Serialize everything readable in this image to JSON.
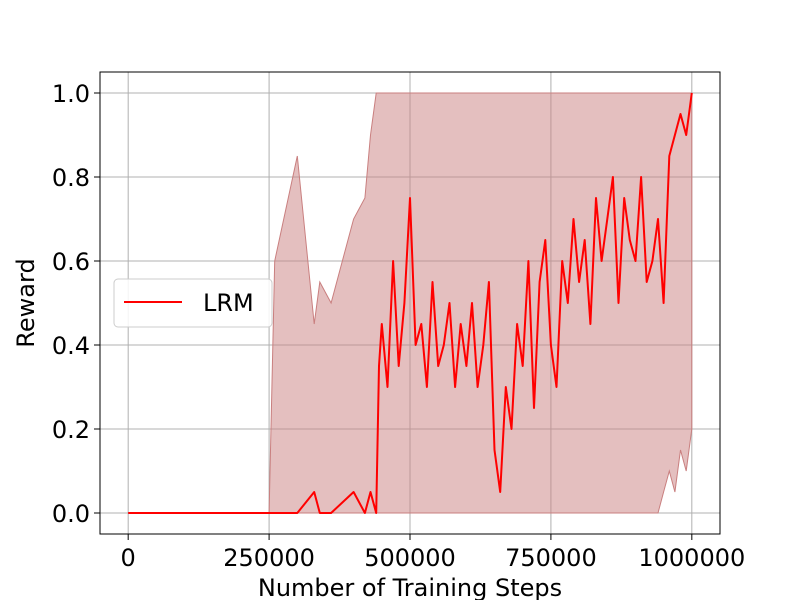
{
  "chart_data": {
    "type": "line",
    "xlabel": "Number of Training Steps",
    "ylabel": "Reward",
    "xlim": [
      -50000,
      1050000
    ],
    "ylim": [
      -0.05,
      1.05
    ],
    "x_ticks": [
      0,
      250000,
      500000,
      750000,
      1000000
    ],
    "x_tick_labels": [
      "0",
      "250000",
      "500000",
      "750000",
      "1000000"
    ],
    "y_ticks": [
      0.0,
      0.2,
      0.4,
      0.6,
      0.8,
      1.0
    ],
    "y_tick_labels": [
      "0.0",
      "0.2",
      "0.4",
      "0.6",
      "0.8",
      "1.0"
    ],
    "grid": true,
    "legend_position": "center-left",
    "series": [
      {
        "name": "LRM",
        "color": "#ff0000",
        "band_color": "#c97f7f",
        "x": [
          0,
          250000,
          260000,
          300000,
          330000,
          340000,
          360000,
          400000,
          420000,
          430000,
          440000,
          445000,
          450000,
          460000,
          470000,
          480000,
          490000,
          500000,
          510000,
          520000,
          530000,
          540000,
          550000,
          560000,
          570000,
          580000,
          590000,
          600000,
          610000,
          620000,
          630000,
          640000,
          650000,
          660000,
          670000,
          680000,
          690000,
          700000,
          710000,
          720000,
          730000,
          740000,
          750000,
          760000,
          770000,
          780000,
          790000,
          800000,
          810000,
          820000,
          830000,
          840000,
          850000,
          860000,
          870000,
          880000,
          890000,
          900000,
          910000,
          920000,
          930000,
          940000,
          950000,
          960000,
          970000,
          980000,
          990000,
          1000000
        ],
        "values": [
          0,
          0,
          0,
          0,
          0.05,
          0,
          0,
          0.05,
          0,
          0.05,
          0,
          0.35,
          0.45,
          0.3,
          0.6,
          0.35,
          0.5,
          0.75,
          0.4,
          0.45,
          0.3,
          0.55,
          0.35,
          0.4,
          0.5,
          0.3,
          0.45,
          0.35,
          0.5,
          0.3,
          0.4,
          0.55,
          0.15,
          0.05,
          0.3,
          0.2,
          0.45,
          0.35,
          0.6,
          0.25,
          0.55,
          0.65,
          0.4,
          0.3,
          0.6,
          0.5,
          0.7,
          0.55,
          0.65,
          0.45,
          0.75,
          0.6,
          0.7,
          0.8,
          0.5,
          0.75,
          0.65,
          0.6,
          0.8,
          0.55,
          0.6,
          0.7,
          0.5,
          0.85,
          0.9,
          0.95,
          0.9,
          1.0
        ],
        "band_upper": [
          0,
          0,
          0.6,
          0.85,
          0.45,
          0.55,
          0.5,
          0.7,
          0.75,
          0.9,
          1.0,
          1.0,
          1.0,
          1.0,
          1.0,
          1.0,
          1.0,
          1.0,
          1.0,
          1.0,
          1.0,
          1.0,
          1.0,
          1.0,
          1.0,
          1.0,
          1.0,
          1.0,
          1.0,
          1.0,
          1.0,
          1.0,
          1.0,
          1.0,
          1.0,
          1.0,
          1.0,
          1.0,
          1.0,
          1.0,
          1.0,
          1.0,
          1.0,
          1.0,
          1.0,
          1.0,
          1.0,
          1.0,
          1.0,
          1.0,
          1.0,
          1.0,
          1.0,
          1.0,
          1.0,
          1.0,
          1.0,
          1.0,
          1.0,
          1.0,
          1.0,
          1.0,
          1.0,
          1.0,
          1.0,
          1.0,
          1.0,
          1.0
        ],
        "band_lower": [
          0,
          0,
          0,
          0,
          0,
          0,
          0,
          0,
          0,
          0,
          0,
          0,
          0,
          0,
          0,
          0,
          0,
          0,
          0,
          0,
          0,
          0,
          0,
          0,
          0,
          0,
          0,
          0,
          0,
          0,
          0,
          0,
          0,
          0,
          0,
          0,
          0,
          0,
          0,
          0,
          0,
          0,
          0,
          0,
          0,
          0,
          0,
          0,
          0,
          0,
          0,
          0,
          0,
          0,
          0,
          0,
          0,
          0,
          0,
          0,
          0,
          0,
          0.05,
          0.1,
          0.05,
          0.15,
          0.1,
          0.2
        ]
      }
    ]
  }
}
